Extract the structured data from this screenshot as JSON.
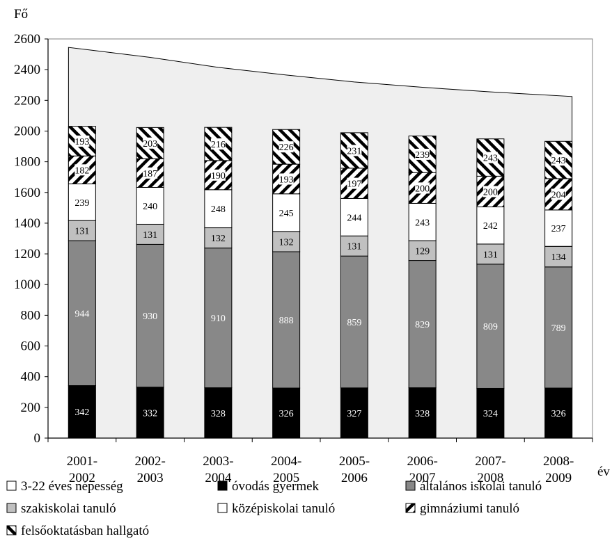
{
  "chart_data": {
    "type": "bar",
    "stacked": true,
    "ylabel": "Fő",
    "xlabel": "év",
    "ylim": [
      0,
      2600
    ],
    "yticks": [
      0,
      200,
      400,
      600,
      800,
      1000,
      1200,
      1400,
      1600,
      1800,
      2000,
      2200,
      2400,
      2600
    ],
    "grid": false,
    "legend_position": "bottom",
    "categories": [
      [
        "2001-",
        "2002"
      ],
      [
        "2002-",
        "2003"
      ],
      [
        "2003-",
        "2004"
      ],
      [
        "2004-",
        "2005"
      ],
      [
        "2005-",
        "2006"
      ],
      [
        "2006-",
        "2007"
      ],
      [
        "2007-",
        "2008"
      ],
      [
        "2008-",
        "2009"
      ]
    ],
    "area_series": {
      "name": "3-22 éves népesség",
      "values": [
        2545,
        2480,
        2415,
        2365,
        2320,
        2285,
        2255,
        2225
      ],
      "color": "#efefef"
    },
    "series": [
      {
        "name": "óvodás gyermek",
        "values": [
          342,
          332,
          328,
          326,
          327,
          328,
          324,
          326
        ],
        "fill": "solid-black",
        "label_color": "#ffffff"
      },
      {
        "name": "általános iskolai tanuló",
        "values": [
          944,
          930,
          910,
          888,
          859,
          829,
          809,
          789
        ],
        "fill": "dark-gray",
        "label_color": "#ffffff"
      },
      {
        "name": "szakiskolai tanuló",
        "values": [
          131,
          131,
          132,
          132,
          131,
          129,
          131,
          134
        ],
        "fill": "light-gray",
        "label_color": "#000000"
      },
      {
        "name": "középiskolai tanuló",
        "values": [
          239,
          240,
          248,
          245,
          244,
          243,
          242,
          237
        ],
        "fill": "white",
        "label_color": "#000000"
      },
      {
        "name": "gimnáziumi tanuló",
        "values": [
          182,
          187,
          190,
          193,
          197,
          200,
          200,
          204
        ],
        "fill": "hatch-down",
        "label_color": "#000000"
      },
      {
        "name": "felsőoktatásban hallgató",
        "values": [
          193,
          203,
          216,
          226,
          231,
          239,
          243,
          243
        ],
        "fill": "hatch-up",
        "label_color": "#000000"
      }
    ],
    "colors": {
      "black": "#000000",
      "dark_gray": "#888888",
      "light_gray": "#c0c0c0",
      "white": "#ffffff",
      "area": "#efefef"
    },
    "legend": [
      {
        "label": "3-22 éves népesség",
        "symbol": "white"
      },
      {
        "label": "óvodás gyermek",
        "symbol": "solid-black"
      },
      {
        "label": "általános iskolai tanuló",
        "symbol": "dark-gray"
      },
      {
        "label": "szakiskolai tanuló",
        "symbol": "light-gray"
      },
      {
        "label": "középiskolai tanuló",
        "symbol": "white"
      },
      {
        "label": "gimnáziumi tanuló",
        "symbol": "hatch-down"
      },
      {
        "label": "felsőoktatásban hallgató",
        "symbol": "hatch-up"
      }
    ]
  }
}
